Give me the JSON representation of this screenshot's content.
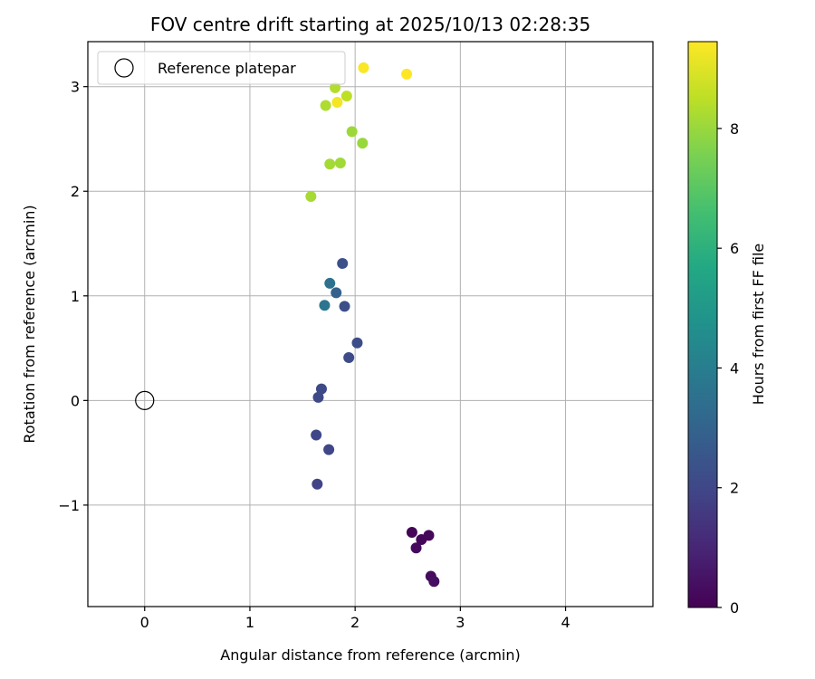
{
  "chart_data": {
    "type": "scatter",
    "title": "FOV centre drift starting at 2025/10/13 02:28:35",
    "xlabel": "Angular distance from reference (arcmin)",
    "ylabel": "Rotation from reference (arcmin)",
    "xlim": [
      -0.54,
      4.83
    ],
    "ylim": [
      -1.97,
      3.43
    ],
    "xticks": [
      0,
      1,
      2,
      3,
      4
    ],
    "xtick_labels": [
      "0",
      "1",
      "2",
      "3",
      "4"
    ],
    "yticks": [
      -1,
      0,
      1,
      2,
      3
    ],
    "ytick_labels": [
      "−1",
      "0",
      "1",
      "2",
      "3"
    ],
    "grid": true,
    "legend": {
      "placement": "top-left",
      "entries": [
        {
          "label": "Reference platepar",
          "marker": "open-circle"
        }
      ]
    },
    "reference_point": {
      "x": 0,
      "y": 0
    },
    "colormap": "viridis",
    "colorbar": {
      "label": "Hours from first FF file",
      "range": [
        0,
        9.45
      ],
      "ticks": [
        0,
        2,
        4,
        6,
        8
      ],
      "tick_labels": [
        "0",
        "2",
        "4",
        "6",
        "8"
      ]
    },
    "points": [
      {
        "x": 2.54,
        "y": -1.26,
        "c": 0.1
      },
      {
        "x": 2.63,
        "y": -1.33,
        "c": 0.15
      },
      {
        "x": 2.7,
        "y": -1.29,
        "c": 0.2
      },
      {
        "x": 2.58,
        "y": -1.41,
        "c": 0.25
      },
      {
        "x": 2.72,
        "y": -1.68,
        "c": 0.3
      },
      {
        "x": 2.75,
        "y": -1.73,
        "c": 0.35
      },
      {
        "x": 1.64,
        "y": -0.8,
        "c": 1.9
      },
      {
        "x": 1.75,
        "y": -0.47,
        "c": 1.95
      },
      {
        "x": 1.63,
        "y": -0.33,
        "c": 2.0
      },
      {
        "x": 1.65,
        "y": 0.03,
        "c": 2.05
      },
      {
        "x": 1.68,
        "y": 0.11,
        "c": 2.1
      },
      {
        "x": 1.94,
        "y": 0.41,
        "c": 2.15
      },
      {
        "x": 2.02,
        "y": 0.55,
        "c": 2.2
      },
      {
        "x": 1.9,
        "y": 0.9,
        "c": 2.25
      },
      {
        "x": 1.88,
        "y": 1.31,
        "c": 2.3
      },
      {
        "x": 1.82,
        "y": 1.03,
        "c": 2.9
      },
      {
        "x": 1.76,
        "y": 1.12,
        "c": 3.5
      },
      {
        "x": 1.71,
        "y": 0.91,
        "c": 3.7
      },
      {
        "x": 1.58,
        "y": 1.95,
        "c": 8.2
      },
      {
        "x": 1.76,
        "y": 2.26,
        "c": 8.15
      },
      {
        "x": 1.86,
        "y": 2.27,
        "c": 8.1
      },
      {
        "x": 1.97,
        "y": 2.57,
        "c": 8.05
      },
      {
        "x": 2.07,
        "y": 2.46,
        "c": 8.0
      },
      {
        "x": 1.72,
        "y": 2.82,
        "c": 8.3
      },
      {
        "x": 1.81,
        "y": 2.99,
        "c": 8.35
      },
      {
        "x": 1.92,
        "y": 2.91,
        "c": 8.5
      },
      {
        "x": 1.83,
        "y": 2.85,
        "c": 9.3
      },
      {
        "x": 2.08,
        "y": 3.18,
        "c": 9.4
      },
      {
        "x": 2.49,
        "y": 3.12,
        "c": 9.45
      }
    ]
  }
}
